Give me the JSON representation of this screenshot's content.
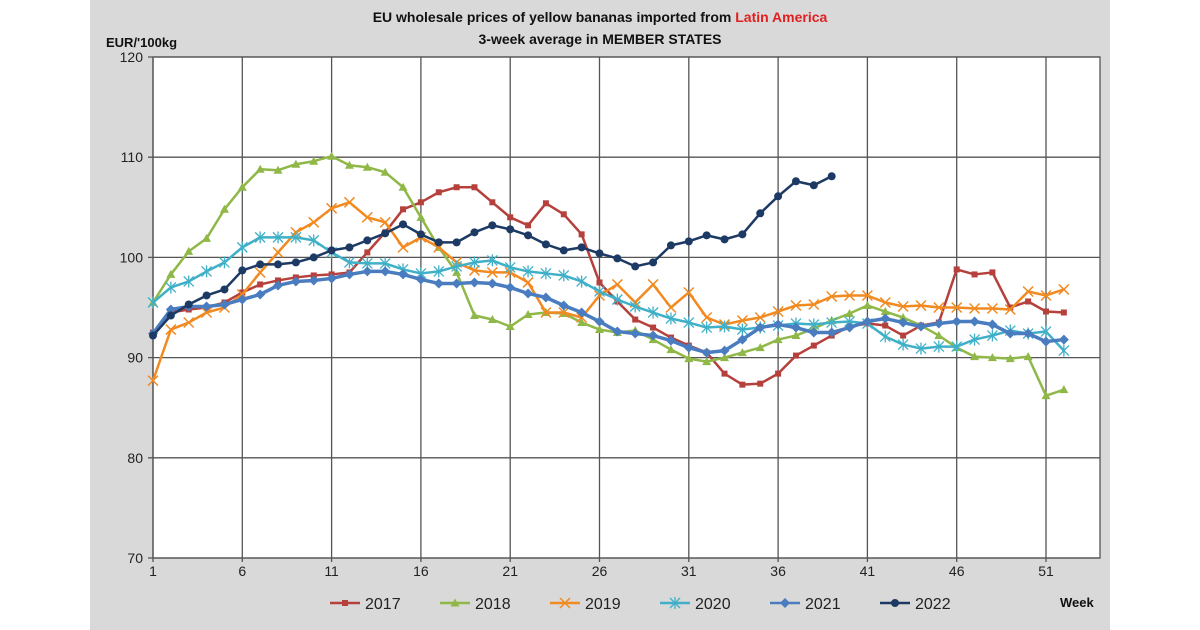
{
  "chart_data": {
    "type": "line",
    "title": {
      "prefix": "EU wholesale prices of yellow bananas imported from ",
      "highlight": "Latin America",
      "highlight_color": "#e02020"
    },
    "subtitle": "3-week average in MEMBER STATES",
    "ylabel": "EUR/'100kg",
    "xlabel": "Week",
    "ylim": [
      70,
      120
    ],
    "yticks": [
      "70",
      "80",
      "90",
      "100",
      "110",
      "120"
    ],
    "xlim": [
      1,
      53
    ],
    "xticks": [
      "1",
      "6",
      "11",
      "16",
      "21",
      "26",
      "31",
      "36",
      "41",
      "46",
      "51"
    ],
    "grid": true,
    "legend_position": "bottom",
    "series": [
      {
        "name": "2017",
        "color": "#b5403c",
        "marker": "square",
        "values": [
          92.5,
          94.5,
          94.8,
          95,
          95.5,
          96.5,
          97.3,
          97.7,
          98,
          98.2,
          98.3,
          98.5,
          100.5,
          102.5,
          104.8,
          105.5,
          106.5,
          107,
          107,
          105.5,
          104,
          103.2,
          105.4,
          104.3,
          102.3,
          97.5,
          95.6,
          93.8,
          93,
          92,
          91.2,
          90.5,
          88.4,
          87.3,
          87.4,
          88.4,
          90.2,
          91.2,
          92.2,
          93.1,
          93.4,
          93.2,
          92.2,
          93.2,
          93.5,
          98.8,
          98.3,
          98.5,
          95,
          95.6,
          94.6,
          94.5
        ]
      },
      {
        "name": "2018",
        "color": "#8fb848",
        "marker": "triangle",
        "values": [
          95.5,
          98.3,
          100.6,
          101.9,
          104.8,
          107,
          108.8,
          108.7,
          109.3,
          109.6,
          110.1,
          109.2,
          109,
          108.5,
          107,
          104,
          101,
          98.5,
          94.2,
          93.8,
          93.1,
          94.3,
          94.5,
          94.4,
          93.5,
          92.8,
          92.5,
          92.7,
          91.8,
          90.8,
          89.9,
          89.6,
          90,
          90.5,
          91,
          91.8,
          92.2,
          92.9,
          93.7,
          94.4,
          95.2,
          94.6,
          94,
          93.2,
          92.2,
          91,
          90.1,
          90,
          89.9,
          90.1,
          86.2,
          86.8
        ]
      },
      {
        "name": "2019",
        "color": "#f28a22",
        "marker": "x",
        "values": [
          87.7,
          92.8,
          93.5,
          94.5,
          95,
          96.3,
          98.5,
          100.5,
          102.5,
          103.5,
          104.9,
          105.5,
          104,
          103.5,
          101,
          102,
          101,
          99.5,
          98.7,
          98.5,
          98.5,
          97.5,
          94.5,
          94.5,
          94,
          96.2,
          97.3,
          95.5,
          97.3,
          95,
          96.5,
          94,
          93.3,
          93.7,
          94,
          94.6,
          95.2,
          95.3,
          96.1,
          96.2,
          96.2,
          95.5,
          95.1,
          95.2,
          95,
          95,
          94.9,
          94.9,
          94.8,
          96.6,
          96.2,
          96.8
        ]
      },
      {
        "name": "2020",
        "color": "#3fb0c8",
        "marker": "star",
        "values": [
          95.5,
          97,
          97.6,
          98.6,
          99.5,
          101,
          102,
          102,
          102,
          101.7,
          100.5,
          99.5,
          99.4,
          99.4,
          98.8,
          98.4,
          98.6,
          99.1,
          99.5,
          99.7,
          99,
          98.6,
          98.4,
          98.2,
          97.6,
          96.6,
          95.8,
          95.1,
          94.5,
          93.9,
          93.5,
          93,
          93.1,
          92.8,
          93,
          93.2,
          93.4,
          93.3,
          93.5,
          93.6,
          93.4,
          92.1,
          91.3,
          90.9,
          91.1,
          91.1,
          91.8,
          92.2,
          92.7,
          92.4,
          92.6,
          90.7
        ]
      },
      {
        "name": "2021",
        "color": "#4a7cc0",
        "marker": "diamond",
        "values": [
          92.4,
          94.8,
          95.1,
          95.1,
          95.3,
          95.8,
          96.3,
          97.2,
          97.6,
          97.7,
          97.9,
          98.3,
          98.6,
          98.6,
          98.3,
          97.8,
          97.4,
          97.4,
          97.5,
          97.4,
          97,
          96.4,
          96,
          95.2,
          94.5,
          93.6,
          92.6,
          92.4,
          92.2,
          91.7,
          91,
          90.5,
          90.7,
          91.8,
          93,
          93.3,
          93,
          92.5,
          92.5,
          93,
          93.6,
          93.9,
          93.5,
          93.1,
          93.4,
          93.6,
          93.6,
          93.3,
          92.4,
          92.4,
          91.6,
          91.8
        ]
      },
      {
        "name": "2022",
        "color": "#1c3a63",
        "marker": "circle",
        "values": [
          92.2,
          94.2,
          95.3,
          96.2,
          96.8,
          98.7,
          99.3,
          99.3,
          99.5,
          100,
          100.7,
          101,
          101.7,
          102.4,
          103.3,
          102.3,
          101.5,
          101.5,
          102.5,
          103.2,
          102.8,
          102.2,
          101.3,
          100.7,
          101,
          100.4,
          99.9,
          99.1,
          99.5,
          101.2,
          101.6,
          102.2,
          101.8,
          102.3,
          104.4,
          106.1,
          107.6,
          107.2,
          108.1
        ]
      }
    ]
  }
}
